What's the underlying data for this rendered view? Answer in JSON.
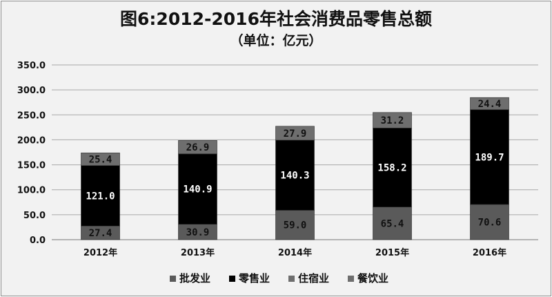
{
  "chart_data": {
    "type": "bar",
    "stacked": true,
    "title": "图6:2012-2016年社会消费品零售总额",
    "subtitle": "（单位：亿元）",
    "categories": [
      "2012年",
      "2013年",
      "2014年",
      "2015年",
      "2016年"
    ],
    "series": [
      {
        "name": "批发业",
        "values": [
          27.4,
          30.9,
          59.0,
          65.4,
          70.6
        ],
        "color": "#5a5a5a",
        "label_color": "#111111"
      },
      {
        "name": "零售业",
        "values": [
          121.0,
          140.9,
          140.3,
          158.2,
          189.7
        ],
        "color": "#000000",
        "label_color": "#ffffff"
      },
      {
        "name": "住宿业",
        "values": [
          0,
          0,
          0,
          0,
          0
        ],
        "color": "#6e6e6e",
        "label_color": "#111111",
        "hide_labels": true
      },
      {
        "name": "餐饮业",
        "values": [
          25.4,
          26.9,
          27.9,
          31.2,
          24.4
        ],
        "color": "#6e6e6e",
        "label_color": "#111111"
      }
    ],
    "ylim": [
      0,
      350
    ],
    "yticks": [
      "0.0",
      "50.0",
      "100.0",
      "150.0",
      "200.0",
      "250.0",
      "300.0",
      "350.0"
    ],
    "grid": true,
    "legend_position": "bottom"
  }
}
